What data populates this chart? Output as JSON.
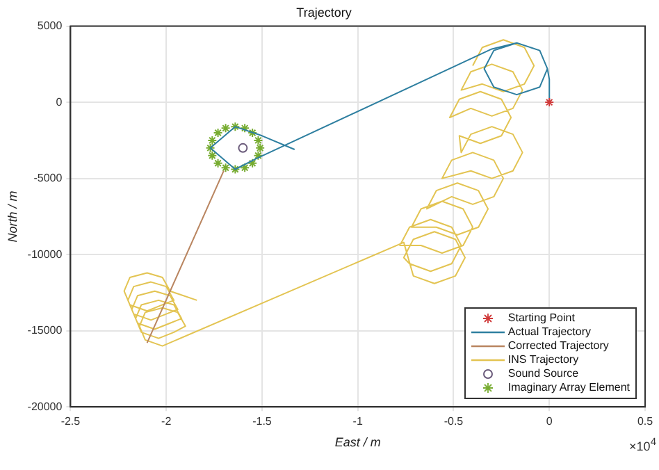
{
  "chart_data": {
    "type": "line",
    "title": "Trajectory",
    "xlabel": "East / m",
    "ylabel": "North / m",
    "annotations": [
      "×10$^{4}$"
    ],
    "xlim": [
      -2.5,
      0.5
    ],
    "xticks": [
      -2.5,
      -2,
      -1.5,
      -1,
      -0.5,
      0,
      0.5
    ],
    "ylim": [
      -20000,
      5000
    ],
    "yticks": [
      -20000,
      -15000,
      -10000,
      -5000,
      0,
      5000
    ],
    "grid": true,
    "legend": "bottom right",
    "series": [
      {
        "name": "Starting Point",
        "type": "scatter",
        "marker": "cross",
        "color": "#d03a3a",
        "x": [
          0
        ],
        "values": [
          0
        ]
      },
      {
        "name": "Actual Trajectory",
        "type": "line",
        "marker": "none",
        "color": "#2e7fa0",
        "x": [
          0,
          0,
          -0.01,
          -0.05,
          -0.17,
          -0.29,
          -0.34,
          -0.29,
          -0.17,
          -0.05,
          -0.01,
          -0.05,
          -0.17,
          -0.3,
          -1.53,
          -1.64,
          -1.77,
          -1.64,
          -1.5,
          -1.33
        ],
        "values": [
          0,
          1500,
          2200,
          3400,
          3900,
          3400,
          2200,
          1000,
          500,
          1000,
          2200,
          3400,
          3900,
          3500,
          -3700,
          -4400,
          -3000,
          -1600,
          -2200,
          -3100
        ]
      },
      {
        "name": "Corrected Trajectory",
        "type": "line",
        "marker": "none",
        "color": "#b98560",
        "x": [
          -1.7,
          -2.1
        ],
        "values": [
          -4500,
          -15800
        ]
      },
      {
        "name": "INS Trajectory",
        "type": "line",
        "marker": "none",
        "color": "#e3c452",
        "x": [
          -1.84,
          -1.98,
          -2.02,
          -2.1,
          -2.19,
          -2.22,
          -2.19,
          -2.1,
          -2.02,
          -1.96,
          -2.0,
          -2.08,
          -2.17,
          -2.2,
          -2.17,
          -2.08,
          -2.0,
          -1.94,
          -1.98,
          -2.06,
          -2.15,
          -2.18,
          -2.15,
          -2.06,
          -1.98,
          -1.92,
          -1.96,
          -2.04,
          -2.13,
          -2.16,
          -2.13,
          -2.04,
          -1.96,
          -1.9,
          -1.94,
          -2.02,
          -2.11,
          -2.14,
          -2.11,
          -2.02,
          -0.76,
          -0.71,
          -0.6,
          -0.49,
          -0.44,
          -0.49,
          -0.6,
          -0.71,
          -0.76,
          -0.73,
          -0.62,
          -0.51,
          -0.46,
          -0.51,
          -0.62,
          -0.73,
          -0.78,
          -0.67,
          -0.56,
          -0.45,
          -0.4,
          -0.45,
          -0.56,
          -0.67,
          -0.72,
          -0.59,
          -0.48,
          -0.37,
          -0.32,
          -0.37,
          -0.48,
          -0.59,
          -0.64,
          -0.51,
          -0.4,
          -0.29,
          -0.24,
          -0.29,
          -0.4,
          -0.51,
          -0.56,
          -0.41,
          -0.3,
          -0.19,
          -0.14,
          -0.19,
          -0.3,
          -0.41,
          -0.46,
          -0.47,
          -0.36,
          -0.25,
          -0.2,
          -0.25,
          -0.36,
          -0.47,
          -0.52,
          -0.41,
          -0.3,
          -0.19,
          -0.14,
          -0.19,
          -0.3,
          -0.41,
          -0.46,
          -0.35,
          -0.24,
          -0.13,
          -0.08,
          -0.13,
          -0.24,
          -0.35,
          -0.4
        ],
        "values": [
          -13000,
          -12400,
          -11500,
          -11200,
          -11500,
          -12400,
          -13300,
          -13700,
          -13300,
          -13000,
          -12100,
          -11800,
          -12100,
          -13000,
          -13900,
          -14300,
          -13900,
          -13600,
          -12700,
          -12400,
          -12700,
          -13600,
          -14500,
          -14900,
          -14500,
          -14200,
          -13300,
          -13000,
          -13300,
          -14200,
          -15100,
          -15500,
          -15100,
          -14700,
          -13800,
          -13500,
          -13800,
          -14700,
          -15600,
          -16000,
          -9200,
          -11400,
          -11900,
          -11400,
          -10200,
          -9000,
          -8500,
          -9000,
          -10200,
          -10600,
          -11100,
          -10600,
          -9400,
          -8200,
          -7700,
          -8200,
          -9400,
          -9400,
          -9900,
          -9400,
          -8200,
          -7000,
          -6500,
          -7000,
          -8200,
          -8200,
          -8700,
          -8200,
          -7000,
          -5800,
          -5300,
          -5800,
          -7000,
          -6200,
          -6700,
          -6200,
          -5000,
          -3800,
          -3300,
          -3800,
          -5000,
          -4500,
          -5000,
          -4500,
          -3300,
          -2100,
          -1600,
          -2100,
          -3300,
          -2200,
          -2700,
          -2200,
          -1000,
          200,
          700,
          200,
          -1000,
          -400,
          -900,
          -400,
          800,
          2000,
          2500,
          2000,
          800,
          1200,
          700,
          1200,
          2400,
          3600,
          4100,
          3600,
          2400
        ]
      },
      {
        "name": "Sound Source",
        "type": "scatter",
        "marker": "circle",
        "color": "#6a5a7a",
        "x": [
          -1.6
        ],
        "values": [
          -3000
        ]
      },
      {
        "name": "Imaginary Array Element",
        "type": "scatter",
        "marker": "cross",
        "color": "#77ac30",
        "x": [
          -1.51,
          -1.52,
          -1.55,
          -1.59,
          -1.64,
          -1.69,
          -1.73,
          -1.76,
          -1.77,
          -1.76,
          -1.73,
          -1.69,
          -1.64,
          -1.59,
          -1.55,
          -1.52
        ],
        "values": [
          -3000,
          -2500,
          -2000,
          -1700,
          -1600,
          -1700,
          -2000,
          -2500,
          -3000,
          -3500,
          -4000,
          -4300,
          -4400,
          -4300,
          -4000,
          -3500
        ]
      }
    ]
  }
}
